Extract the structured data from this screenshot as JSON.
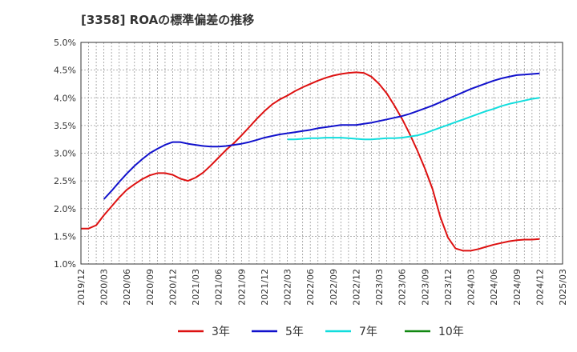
{
  "chart_data": {
    "type": "line",
    "title": "[3358]  ROAの標準偏差の推移",
    "xlabel": "",
    "ylabel": "",
    "ylim": [
      1.0,
      5.0
    ],
    "y_ticks": [
      "1.0%",
      "1.5%",
      "2.0%",
      "2.5%",
      "3.0%",
      "3.5%",
      "4.0%",
      "4.5%",
      "5.0%"
    ],
    "x_ticks": [
      "2019/12",
      "2020/03",
      "2020/06",
      "2020/09",
      "2020/12",
      "2021/03",
      "2021/06",
      "2021/09",
      "2021/12",
      "2022/03",
      "2022/06",
      "2022/09",
      "2022/12",
      "2023/03",
      "2023/06",
      "2023/09",
      "2023/12",
      "2024/03",
      "2024/06",
      "2024/09",
      "2024/12",
      "2025/03"
    ],
    "grid": true,
    "legend_position": "bottom",
    "series": [
      {
        "name": "3年",
        "color": "#dd1111",
        "points": [
          [
            "2019/12",
            1.64
          ],
          [
            "2020/01",
            1.64
          ],
          [
            "2020/02",
            1.7
          ],
          [
            "2020/03",
            1.88
          ],
          [
            "2020/04",
            2.04
          ],
          [
            "2020/05",
            2.2
          ],
          [
            "2020/06",
            2.34
          ],
          [
            "2020/07",
            2.44
          ],
          [
            "2020/08",
            2.53
          ],
          [
            "2020/09",
            2.6
          ],
          [
            "2020/10",
            2.64
          ],
          [
            "2020/11",
            2.64
          ],
          [
            "2020/12",
            2.61
          ],
          [
            "2021/01",
            2.54
          ],
          [
            "2021/02",
            2.5
          ],
          [
            "2021/03",
            2.56
          ],
          [
            "2021/04",
            2.65
          ],
          [
            "2021/05",
            2.78
          ],
          [
            "2021/06",
            2.92
          ],
          [
            "2021/07",
            3.06
          ],
          [
            "2021/08",
            3.18
          ],
          [
            "2021/09",
            3.32
          ],
          [
            "2021/10",
            3.47
          ],
          [
            "2021/11",
            3.62
          ],
          [
            "2021/12",
            3.76
          ],
          [
            "2022/01",
            3.88
          ],
          [
            "2022/02",
            3.97
          ],
          [
            "2022/03",
            4.04
          ],
          [
            "2022/04",
            4.12
          ],
          [
            "2022/05",
            4.19
          ],
          [
            "2022/06",
            4.25
          ],
          [
            "2022/07",
            4.31
          ],
          [
            "2022/08",
            4.36
          ],
          [
            "2022/09",
            4.4
          ],
          [
            "2022/10",
            4.43
          ],
          [
            "2022/11",
            4.45
          ],
          [
            "2022/12",
            4.46
          ],
          [
            "2023/01",
            4.45
          ],
          [
            "2023/02",
            4.38
          ],
          [
            "2023/03",
            4.25
          ],
          [
            "2023/04",
            4.08
          ],
          [
            "2023/05",
            3.86
          ],
          [
            "2023/06",
            3.62
          ],
          [
            "2023/07",
            3.35
          ],
          [
            "2023/08",
            3.05
          ],
          [
            "2023/09",
            2.72
          ],
          [
            "2023/10",
            2.35
          ],
          [
            "2023/11",
            1.85
          ],
          [
            "2023/12",
            1.48
          ],
          [
            "2024/01",
            1.28
          ],
          [
            "2024/02",
            1.24
          ],
          [
            "2024/03",
            1.24
          ],
          [
            "2024/04",
            1.27
          ],
          [
            "2024/05",
            1.31
          ],
          [
            "2024/06",
            1.35
          ],
          [
            "2024/07",
            1.38
          ],
          [
            "2024/08",
            1.41
          ],
          [
            "2024/09",
            1.43
          ],
          [
            "2024/10",
            1.44
          ],
          [
            "2024/11",
            1.44
          ],
          [
            "2024/12",
            1.45
          ]
        ]
      },
      {
        "name": "5年",
        "color": "#1111cc",
        "points": [
          [
            "2020/03",
            2.17
          ],
          [
            "2020/04",
            2.32
          ],
          [
            "2020/05",
            2.48
          ],
          [
            "2020/06",
            2.63
          ],
          [
            "2020/07",
            2.77
          ],
          [
            "2020/08",
            2.89
          ],
          [
            "2020/09",
            3.0
          ],
          [
            "2020/10",
            3.08
          ],
          [
            "2020/11",
            3.15
          ],
          [
            "2020/12",
            3.2
          ],
          [
            "2021/01",
            3.2
          ],
          [
            "2021/02",
            3.17
          ],
          [
            "2021/03",
            3.15
          ],
          [
            "2021/04",
            3.13
          ],
          [
            "2021/05",
            3.12
          ],
          [
            "2021/06",
            3.12
          ],
          [
            "2021/07",
            3.13
          ],
          [
            "2021/08",
            3.15
          ],
          [
            "2021/09",
            3.17
          ],
          [
            "2021/10",
            3.2
          ],
          [
            "2021/11",
            3.24
          ],
          [
            "2021/12",
            3.28
          ],
          [
            "2022/01",
            3.31
          ],
          [
            "2022/02",
            3.34
          ],
          [
            "2022/03",
            3.36
          ],
          [
            "2022/04",
            3.38
          ],
          [
            "2022/05",
            3.4
          ],
          [
            "2022/06",
            3.42
          ],
          [
            "2022/07",
            3.45
          ],
          [
            "2022/08",
            3.47
          ],
          [
            "2022/09",
            3.49
          ],
          [
            "2022/10",
            3.51
          ],
          [
            "2022/11",
            3.51
          ],
          [
            "2022/12",
            3.51
          ],
          [
            "2023/01",
            3.53
          ],
          [
            "2023/02",
            3.55
          ],
          [
            "2023/03",
            3.58
          ],
          [
            "2023/04",
            3.61
          ],
          [
            "2023/05",
            3.64
          ],
          [
            "2023/06",
            3.67
          ],
          [
            "2023/07",
            3.71
          ],
          [
            "2023/08",
            3.76
          ],
          [
            "2023/09",
            3.81
          ],
          [
            "2023/10",
            3.86
          ],
          [
            "2023/11",
            3.92
          ],
          [
            "2023/12",
            3.98
          ],
          [
            "2024/01",
            4.04
          ],
          [
            "2024/02",
            4.1
          ],
          [
            "2024/03",
            4.16
          ],
          [
            "2024/04",
            4.21
          ],
          [
            "2024/05",
            4.26
          ],
          [
            "2024/06",
            4.31
          ],
          [
            "2024/07",
            4.35
          ],
          [
            "2024/08",
            4.38
          ],
          [
            "2024/09",
            4.41
          ],
          [
            "2024/10",
            4.42
          ],
          [
            "2024/11",
            4.43
          ],
          [
            "2024/12",
            4.44
          ]
        ]
      },
      {
        "name": "7年",
        "color": "#11dddd",
        "points": [
          [
            "2022/03",
            3.25
          ],
          [
            "2022/04",
            3.25
          ],
          [
            "2022/05",
            3.26
          ],
          [
            "2022/06",
            3.27
          ],
          [
            "2022/07",
            3.27
          ],
          [
            "2022/08",
            3.28
          ],
          [
            "2022/09",
            3.28
          ],
          [
            "2022/10",
            3.28
          ],
          [
            "2022/11",
            3.27
          ],
          [
            "2022/12",
            3.26
          ],
          [
            "2023/01",
            3.25
          ],
          [
            "2023/02",
            3.25
          ],
          [
            "2023/03",
            3.26
          ],
          [
            "2023/04",
            3.27
          ],
          [
            "2023/05",
            3.27
          ],
          [
            "2023/06",
            3.28
          ],
          [
            "2023/07",
            3.3
          ],
          [
            "2023/08",
            3.32
          ],
          [
            "2023/09",
            3.36
          ],
          [
            "2023/10",
            3.41
          ],
          [
            "2023/11",
            3.46
          ],
          [
            "2023/12",
            3.51
          ],
          [
            "2024/01",
            3.56
          ],
          [
            "2024/02",
            3.61
          ],
          [
            "2024/03",
            3.66
          ],
          [
            "2024/04",
            3.71
          ],
          [
            "2024/05",
            3.76
          ],
          [
            "2024/06",
            3.8
          ],
          [
            "2024/07",
            3.85
          ],
          [
            "2024/08",
            3.89
          ],
          [
            "2024/09",
            3.92
          ],
          [
            "2024/10",
            3.95
          ],
          [
            "2024/11",
            3.98
          ],
          [
            "2024/12",
            4.0
          ]
        ]
      },
      {
        "name": "10年",
        "color": "#118811",
        "points": []
      }
    ]
  }
}
